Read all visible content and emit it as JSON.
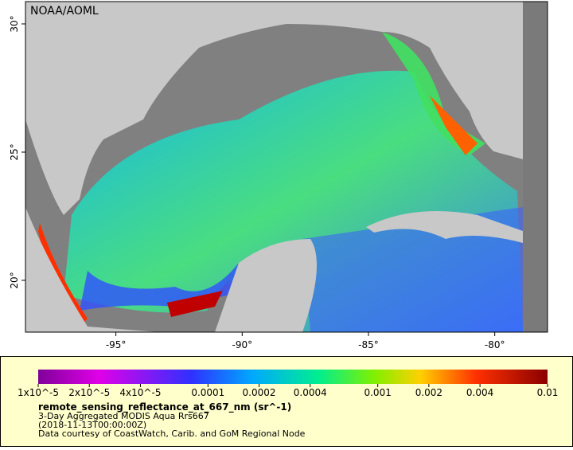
{
  "map": {
    "title": "NOAA/AOML",
    "xlim": [
      -98.58,
      -77.91
    ],
    "ylim": [
      17.98,
      30.87
    ],
    "xticks": [
      {
        "value": -95,
        "label": "-95°"
      },
      {
        "value": -90,
        "label": "-90°"
      },
      {
        "value": -85,
        "label": "-85°"
      },
      {
        "value": -80,
        "label": "-80°"
      }
    ],
    "yticks": [
      {
        "value": 20,
        "label": "20°"
      },
      {
        "value": 25,
        "label": "25°"
      },
      {
        "value": 30,
        "label": "30°"
      }
    ]
  },
  "colorbar": {
    "log": true,
    "clim": [
      1e-05,
      0.01
    ],
    "ticks": [
      {
        "value": 1e-05,
        "label": "1x10^-5"
      },
      {
        "value": 2e-05,
        "label": "2x10^-5"
      },
      {
        "value": 4e-05,
        "label": "4x10^-5"
      },
      0.0001,
      0.0002,
      0.0004,
      0.001,
      0.002,
      0.004,
      0.01
    ],
    "variable": "remote_sensing_reflectance_at_667_nm (sr^-1)",
    "dataset": "3-Day Aggregated MODIS Aqua Rrs667",
    "time": "(2018-11-13T00:00:00Z)",
    "credit": "Data courtesy of CoastWatch, Carib. and GoM Regional Node"
  }
}
